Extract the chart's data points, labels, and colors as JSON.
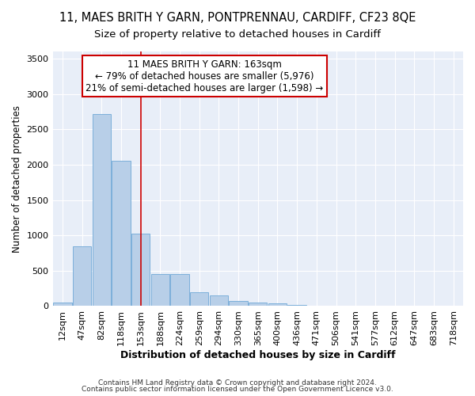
{
  "title": "11, MAES BRITH Y GARN, PONTPRENNAU, CARDIFF, CF23 8QE",
  "subtitle": "Size of property relative to detached houses in Cardiff",
  "xlabel": "Distribution of detached houses by size in Cardiff",
  "ylabel": "Number of detached properties",
  "categories": [
    "12sqm",
    "47sqm",
    "82sqm",
    "118sqm",
    "153sqm",
    "188sqm",
    "224sqm",
    "259sqm",
    "294sqm",
    "330sqm",
    "365sqm",
    "400sqm",
    "436sqm",
    "471sqm",
    "506sqm",
    "541sqm",
    "577sqm",
    "612sqm",
    "647sqm",
    "683sqm",
    "718sqm"
  ],
  "values": [
    55,
    850,
    2720,
    2060,
    1020,
    450,
    450,
    200,
    155,
    70,
    55,
    35,
    20,
    5,
    2,
    1,
    0,
    0,
    0,
    0,
    0
  ],
  "bar_color": "#b8cfe8",
  "bar_edge_color": "#6fa8d6",
  "vline_pos": 4,
  "vline_color": "#cc0000",
  "annotation_line1": "11 MAES BRITH Y GARN: 163sqm",
  "annotation_line2": "← 79% of detached houses are smaller (5,976)",
  "annotation_line3": "21% of semi-detached houses are larger (1,598) →",
  "annotation_box_facecolor": "#ffffff",
  "annotation_box_edgecolor": "#cc0000",
  "ylim": [
    0,
    3600
  ],
  "yticks": [
    0,
    500,
    1000,
    1500,
    2000,
    2500,
    3000,
    3500
  ],
  "footnote1": "Contains HM Land Registry data © Crown copyright and database right 2024.",
  "footnote2": "Contains public sector information licensed under the Open Government Licence v3.0.",
  "plot_bg": "#e8eef8",
  "title_fontsize": 10.5,
  "subtitle_fontsize": 9.5,
  "tick_fontsize": 8,
  "ylabel_fontsize": 8.5,
  "xlabel_fontsize": 9,
  "annotation_fontsize": 8.5,
  "footnote_fontsize": 6.5
}
